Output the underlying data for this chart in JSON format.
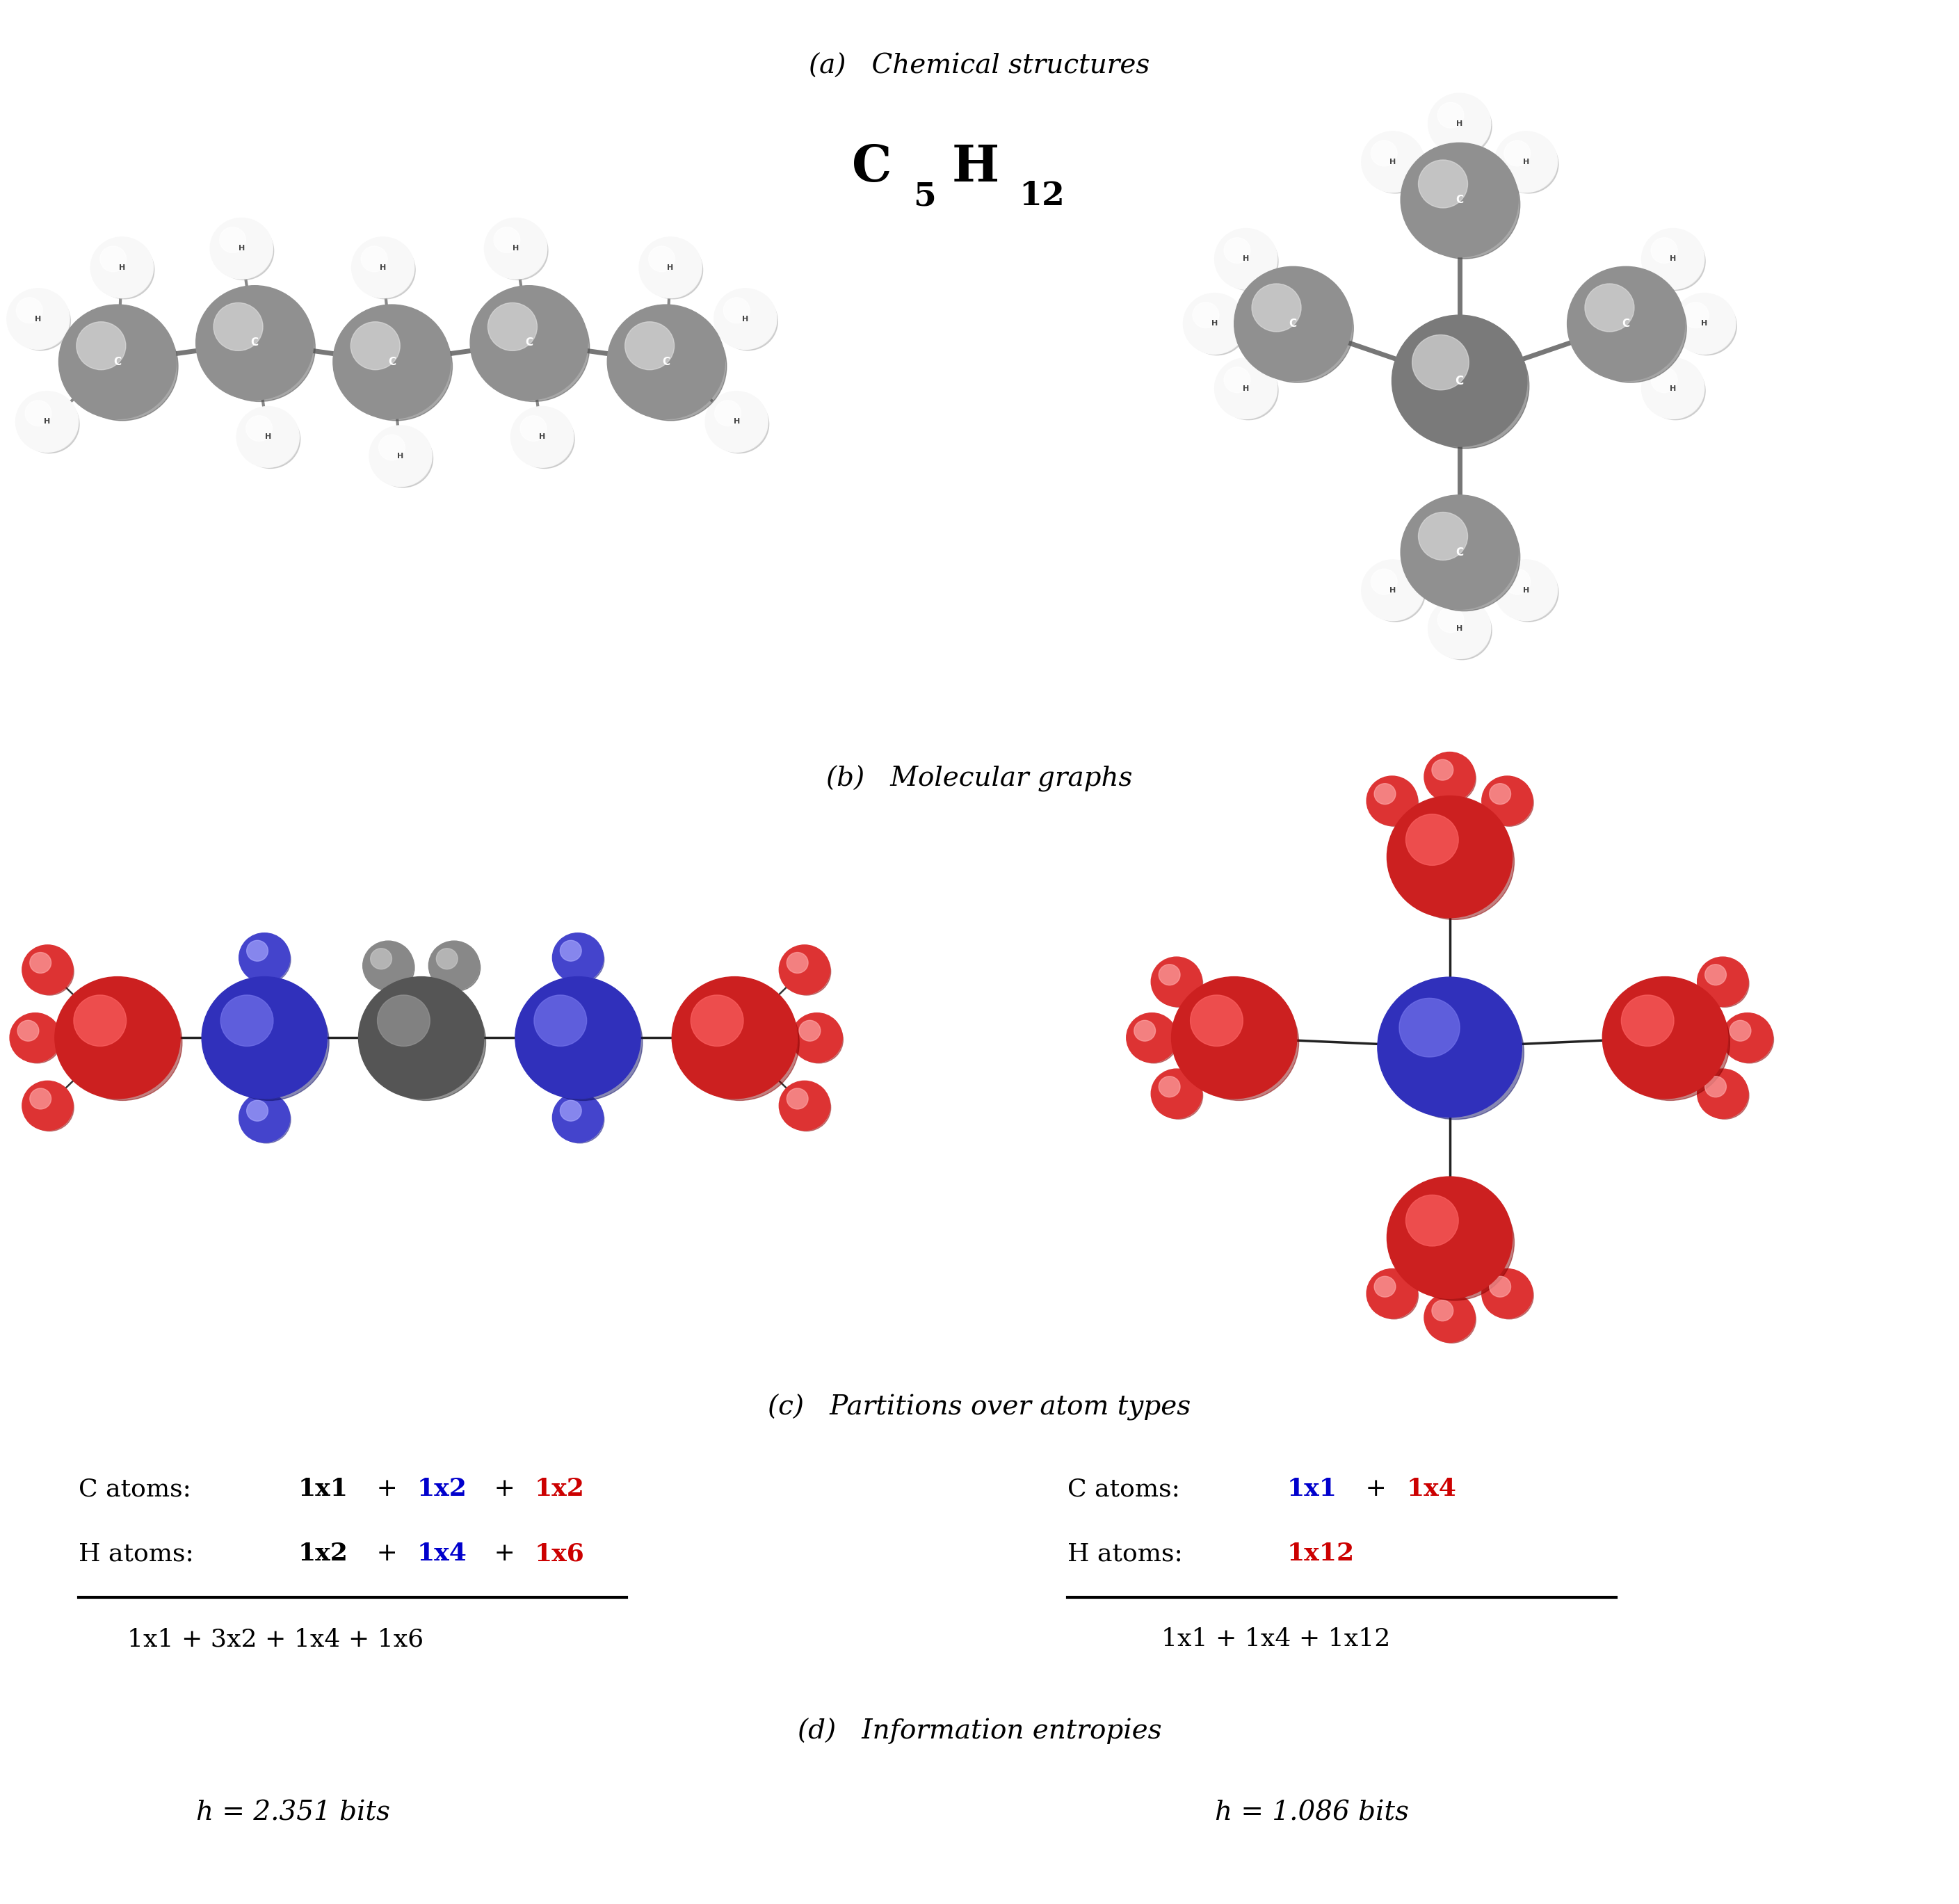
{
  "bg_color": "#ffffff",
  "title_a": "(a)   Chemical structures",
  "title_b": "(b)   Molecular graphs",
  "title_c": "(c)   Partitions over atom types",
  "title_d": "(d)   Information entropies",
  "formula_C": "C",
  "formula_5": "5",
  "formula_H": "H",
  "formula_12": "12",
  "left_entropy": "h = 2.351 bits",
  "right_entropy": "h = 1.086 bits",
  "left_total": "1x1 + 3x2 + 1x4 + 1x6",
  "right_total": "1x1 + 1x4 + 1x12",
  "section_fontsize": 28,
  "formula_fontsize": 52,
  "formula_sub_fontsize": 34,
  "partition_fontsize": 26,
  "entropy_fontsize": 28,
  "c_gray_main": "#909090",
  "c_gray_light": "#e0e0e0",
  "c_gray_dark": "#505050",
  "h_white_main": "#f8f8f8",
  "h_white_light": "#ffffff",
  "h_white_dark": "#b0b0b0",
  "red_main": "#cc2020",
  "red_light": "#ff6666",
  "red_dark": "#880000",
  "blue_main": "#3030bb",
  "blue_light": "#7777ee",
  "blue_dark": "#111166",
  "gray_main": "#555555",
  "gray_light": "#999999",
  "gray_dark": "#222222",
  "hred_main": "#dd3333",
  "hred_light": "#ffaaaa",
  "hred_dark": "#991111",
  "hblue_main": "#4444cc",
  "hblue_light": "#aaaaff",
  "hblue_dark": "#222288",
  "hgray_main": "#888888",
  "hgray_light": "#cccccc",
  "hgray_dark": "#444444"
}
